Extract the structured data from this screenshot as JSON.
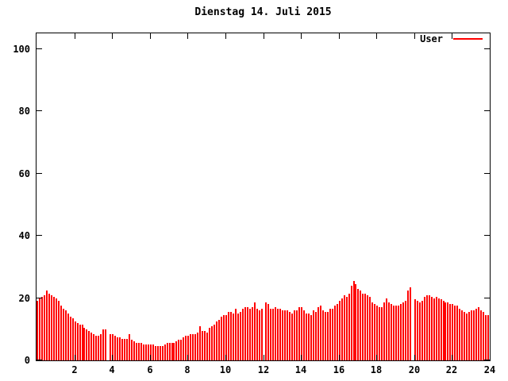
{
  "title": "Dienstag 14. Juli 2015",
  "legend": {
    "label": "User"
  },
  "colors": {
    "bar": "#ff0000",
    "axis": "#000000",
    "background": "#ffffff"
  },
  "axes": {
    "y_ticks": [
      0,
      20,
      40,
      60,
      80,
      100
    ],
    "x_ticks": [
      2,
      4,
      6,
      8,
      10,
      12,
      14,
      16,
      18,
      20,
      22,
      24
    ]
  },
  "chart_data": {
    "type": "bar",
    "title": "Dienstag 14. Juli 2015",
    "xlabel": "",
    "ylabel": "",
    "xlim": [
      0,
      24
    ],
    "ylim": [
      0,
      105
    ],
    "grid": false,
    "legend_position": "top-right",
    "x_unit": "hour-of-day",
    "x_start": 0,
    "x_step": 0.125,
    "note_gaps": "null entries are missing samples (visible white gaps near 03:45, 12:00 and 19:55)",
    "series": [
      {
        "name": "User",
        "color": "#ff0000",
        "values": [
          19,
          20,
          20.5,
          21,
          22.5,
          21.5,
          21,
          20.5,
          20,
          19,
          17.5,
          16.5,
          16,
          15,
          14,
          13.5,
          12.5,
          12,
          11.5,
          11.5,
          10.5,
          10,
          9.5,
          9,
          8.5,
          8,
          8,
          8.5,
          10,
          10,
          null,
          8.5,
          8.5,
          8,
          7.5,
          7.5,
          7,
          7,
          7,
          8.5,
          6.5,
          6,
          5.5,
          5.5,
          5.5,
          5,
          5,
          5,
          5,
          5,
          4.5,
          4.5,
          4.5,
          4.5,
          5,
          5.5,
          5.5,
          5.5,
          5.5,
          6,
          6.5,
          6.5,
          7.5,
          8,
          8,
          8.5,
          8.5,
          8.5,
          9,
          11,
          9.5,
          9.5,
          9,
          10.5,
          11,
          11.5,
          12.5,
          13,
          14,
          14.5,
          14.5,
          15.5,
          15.5,
          15,
          16.5,
          15,
          15.5,
          16.5,
          17,
          17,
          16.5,
          17,
          18.5,
          16.5,
          16,
          16.5,
          null,
          18.5,
          18,
          16.5,
          16.5,
          17,
          16.5,
          16.5,
          16,
          16,
          16,
          15.5,
          15,
          16,
          16,
          17,
          17,
          16,
          15,
          15,
          14.5,
          16,
          15.5,
          17,
          17.5,
          16,
          15.5,
          15.5,
          16.5,
          16.5,
          17.5,
          18,
          19,
          20,
          21,
          20.5,
          21.5,
          24,
          25.5,
          24.5,
          23,
          22.5,
          21.5,
          21.5,
          21,
          20.5,
          18.5,
          18,
          17.5,
          17,
          17,
          18.5,
          20,
          18.5,
          18,
          17.5,
          17.5,
          17.5,
          18,
          18.5,
          19,
          22.5,
          23.5,
          null,
          19.5,
          19,
          18.5,
          19,
          20.5,
          21,
          21,
          20.5,
          20,
          20.5,
          20,
          19.5,
          19,
          18.5,
          18.5,
          18,
          18,
          17.5,
          17.5,
          16.5,
          16,
          15.5,
          15,
          15.5,
          16,
          16,
          16.5,
          17,
          16,
          15.5,
          14.5,
          14.5
        ]
      }
    ]
  }
}
